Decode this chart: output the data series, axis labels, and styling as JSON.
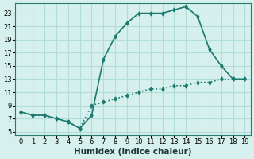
{
  "line1_x": [
    0,
    1,
    2,
    3,
    4,
    5,
    6,
    7,
    8,
    9,
    10,
    11,
    12,
    13,
    14,
    15,
    16,
    17,
    18,
    19
  ],
  "line1_y": [
    8.0,
    7.5,
    7.5,
    7.0,
    6.5,
    5.5,
    7.5,
    16.0,
    19.5,
    21.5,
    23.0,
    23.0,
    23.0,
    23.5,
    24.0,
    22.5,
    17.5,
    15.0,
    13.0,
    13.0
  ],
  "line2_x": [
    0,
    1,
    2,
    3,
    4,
    5,
    6,
    7,
    8,
    9,
    10,
    11,
    12,
    13,
    14,
    15,
    16,
    17,
    18,
    19
  ],
  "line2_y": [
    8.0,
    7.5,
    7.5,
    7.0,
    6.5,
    5.5,
    9.0,
    9.5,
    10.0,
    10.5,
    11.0,
    11.5,
    11.5,
    12.0,
    12.0,
    12.5,
    12.5,
    13.0,
    13.0,
    13.0
  ],
  "line_color": "#1a7a6e",
  "bg_color": "#d6f0ed",
  "grid_color": "#b0ddd8",
  "xlabel": "Humidex (Indice chaleur)",
  "xlim": [
    -0.5,
    19.5
  ],
  "ylim": [
    4.5,
    24.5
  ],
  "xticks": [
    0,
    1,
    2,
    3,
    4,
    5,
    6,
    7,
    8,
    9,
    10,
    11,
    12,
    13,
    14,
    15,
    16,
    17,
    18,
    19
  ],
  "yticks": [
    5,
    7,
    9,
    11,
    13,
    15,
    17,
    19,
    21,
    23
  ],
  "marker": "d",
  "markersize": 2.5,
  "linewidth": 1.2,
  "xlabel_fontsize": 7.5,
  "tick_fontsize": 6
}
